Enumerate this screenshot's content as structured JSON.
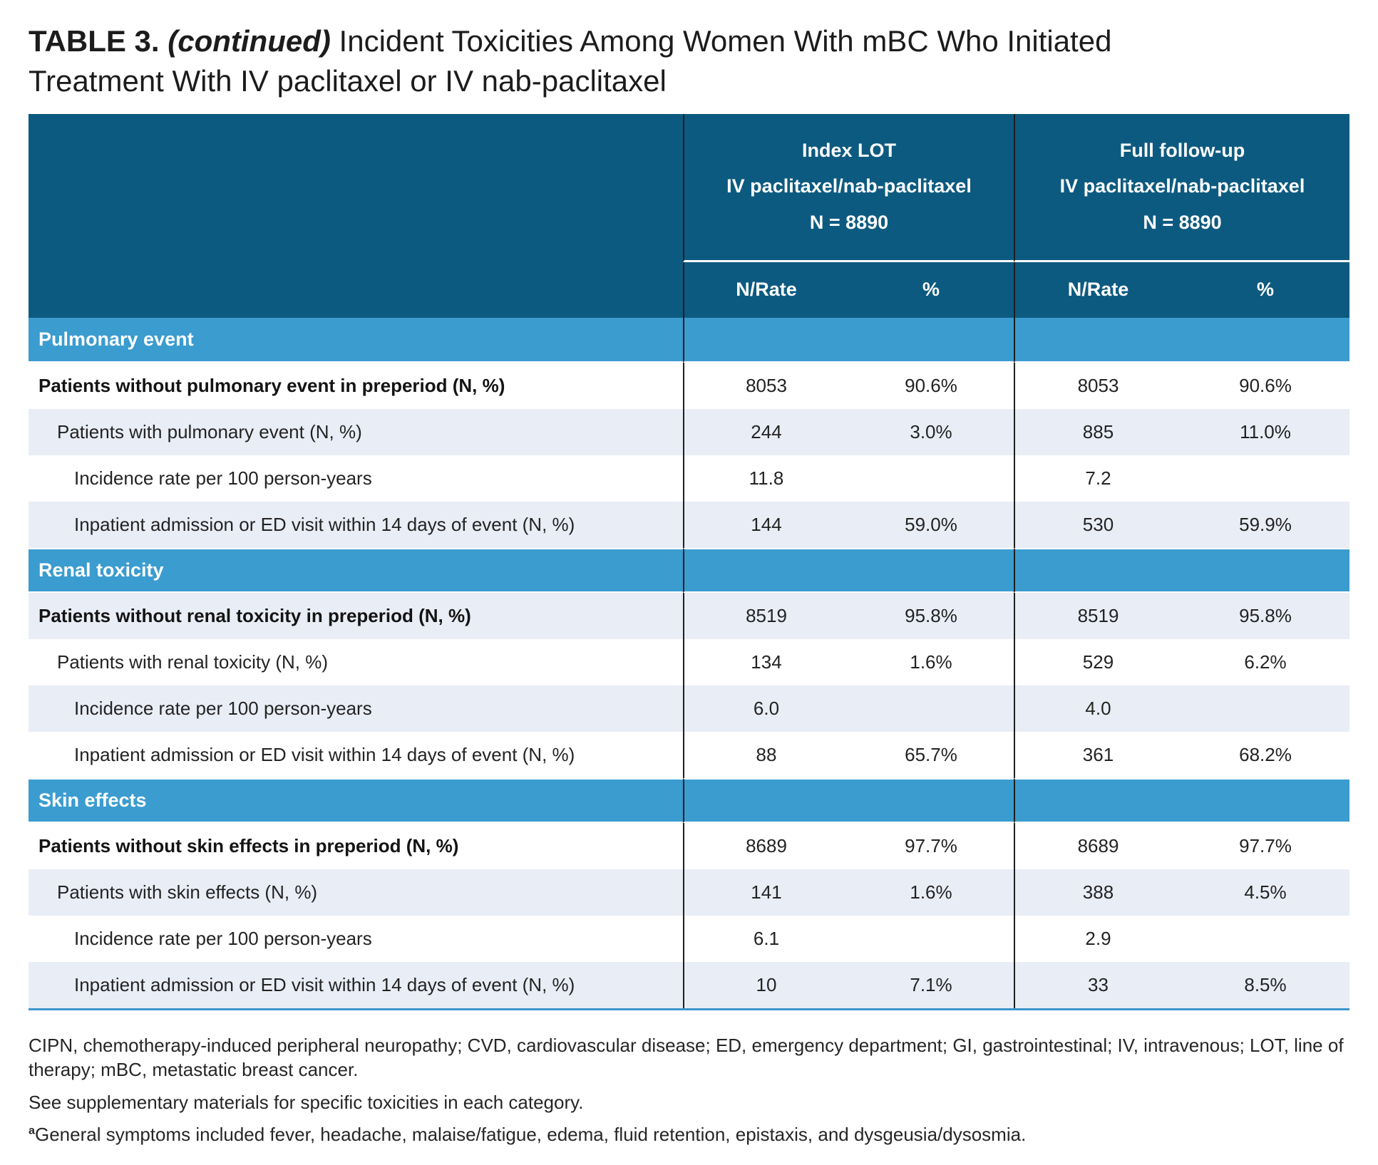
{
  "title": {
    "label": "TABLE 3.",
    "continued": "(continued)",
    "text": "Incident Toxicities Among Women With mBC Who Initiated Treatment With IV paclitaxel or IV nab-paclitaxel"
  },
  "table": {
    "column_groups": [
      {
        "line1": "Index LOT",
        "line2": "IV paclitaxel/nab-paclitaxel",
        "line3": "N = 8890"
      },
      {
        "line1": "Full follow-up",
        "line2": "IV paclitaxel/nab-paclitaxel",
        "line3": "N = 8890"
      }
    ],
    "subheaders": [
      "N/Rate",
      "%",
      "N/Rate",
      "%"
    ],
    "sections": [
      {
        "header": "Pulmonary event",
        "rows": [
          {
            "label": "Patients without pulmonary event in preperiod (N, %)",
            "indent": 0,
            "bold": true,
            "shaded": false,
            "values": [
              "8053",
              "90.6%",
              "8053",
              "90.6%"
            ]
          },
          {
            "label": "Patients with pulmonary event (N, %)",
            "indent": 1,
            "bold": false,
            "shaded": true,
            "values": [
              "244",
              "3.0%",
              "885",
              "11.0%"
            ]
          },
          {
            "label": "Incidence rate per 100 person-years",
            "indent": 2,
            "bold": false,
            "shaded": false,
            "values": [
              "11.8",
              "",
              "7.2",
              ""
            ]
          },
          {
            "label": "Inpatient admission or ED visit within 14 days of event (N, %)",
            "indent": 2,
            "bold": false,
            "shaded": true,
            "values": [
              "144",
              "59.0%",
              "530",
              "59.9%"
            ]
          }
        ]
      },
      {
        "header": "Renal toxicity",
        "rows": [
          {
            "label": "Patients without renal toxicity in preperiod (N, %)",
            "indent": 0,
            "bold": true,
            "shaded": true,
            "values": [
              "8519",
              "95.8%",
              "8519",
              "95.8%"
            ]
          },
          {
            "label": "Patients with renal toxicity (N, %)",
            "indent": 1,
            "bold": false,
            "shaded": false,
            "values": [
              "134",
              "1.6%",
              "529",
              "6.2%"
            ]
          },
          {
            "label": "Incidence rate per 100 person-years",
            "indent": 2,
            "bold": false,
            "shaded": true,
            "values": [
              "6.0",
              "",
              "4.0",
              ""
            ]
          },
          {
            "label": "Inpatient admission or ED visit within 14 days of event (N, %)",
            "indent": 2,
            "bold": false,
            "shaded": false,
            "values": [
              "88",
              "65.7%",
              "361",
              "68.2%"
            ]
          }
        ]
      },
      {
        "header": "Skin effects",
        "rows": [
          {
            "label": "Patients without skin effects in preperiod (N, %)",
            "indent": 0,
            "bold": true,
            "shaded": false,
            "values": [
              "8689",
              "97.7%",
              "8689",
              "97.7%"
            ]
          },
          {
            "label": "Patients with skin effects (N, %)",
            "indent": 1,
            "bold": false,
            "shaded": true,
            "values": [
              "141",
              "1.6%",
              "388",
              "4.5%"
            ]
          },
          {
            "label": "Incidence rate per 100 person-years",
            "indent": 2,
            "bold": false,
            "shaded": false,
            "values": [
              "6.1",
              "",
              "2.9",
              ""
            ]
          },
          {
            "label": "Inpatient admission or ED visit within 14 days of event (N, %)",
            "indent": 2,
            "bold": false,
            "shaded": true,
            "values": [
              "10",
              "7.1%",
              "33",
              "8.5%"
            ]
          }
        ]
      }
    ]
  },
  "footnotes": [
    {
      "text": "CIPN, chemotherapy-induced peripheral neuropathy; CVD, cardiovascular disease; ED, emergency department; GI, gastrointestinal; IV, intravenous; LOT, line of therapy; mBC, metastatic breast cancer."
    },
    {
      "text": "See supplementary materials for specific toxicities in each category."
    },
    {
      "marker": "a",
      "text": "General symptoms included fever, headache, malaise/fatigue, edema, fluid retention, epistaxis, and dysgeusia/dysosmia."
    }
  ],
  "colors": {
    "header_bg": "#0d5a80",
    "section_bg": "#3a9ccf",
    "shaded_row_bg": "#e9edf5",
    "divider": "#1f1f1f",
    "bottom_rule": "#3d96cc",
    "body_text": "#232323",
    "title_text": "#1c1c1c"
  }
}
